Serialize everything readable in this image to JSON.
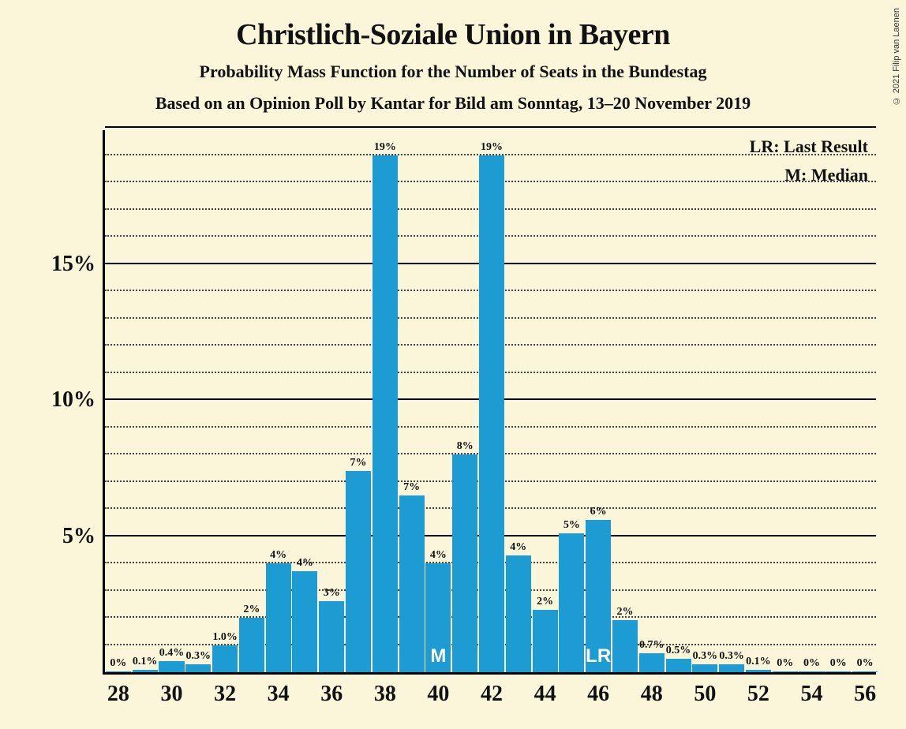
{
  "copyright": "© 2021 Filip van Laenen",
  "title": "Christlich-Soziale Union in Bayern",
  "subtitle1": "Probability Mass Function for the Number of Seats in the Bundestag",
  "subtitle2": "Based on an Opinion Poll by Kantar for Bild am Sonntag, 13–20 November 2019",
  "legend_lr": "LR: Last Result",
  "legend_m": "M: Median",
  "chart": {
    "type": "bar",
    "bar_color": "#1d9cd3",
    "background_color": "#fbf6da",
    "axis_color": "#000000",
    "grid_major_color": "#000000",
    "grid_minor_color": "#444444",
    "title_fontsize": 38,
    "subtitle_fontsize": 22,
    "axis_label_fontsize": 28,
    "bar_label_fontsize": 14,
    "ylim_max": 20,
    "y_major_step": 5,
    "y_minor_step": 1,
    "x_min": 28,
    "x_max": 56,
    "x_tick_step": 2,
    "bar_width_ratio": 0.95,
    "markers": {
      "M": {
        "x": 40,
        "label": "M"
      },
      "LR": {
        "x": 46,
        "label": "LR"
      }
    },
    "bars": [
      {
        "x": 28,
        "value": 0,
        "label": "0%"
      },
      {
        "x": 29,
        "value": 0.1,
        "label": "0.1%"
      },
      {
        "x": 30,
        "value": 0.4,
        "label": "0.4%"
      },
      {
        "x": 31,
        "value": 0.3,
        "label": "0.3%"
      },
      {
        "x": 32,
        "value": 1.0,
        "label": "1.0%"
      },
      {
        "x": 33,
        "value": 2,
        "label": "2%"
      },
      {
        "x": 34,
        "value": 4,
        "label": "4%"
      },
      {
        "x": 35,
        "value": 3.7,
        "label": "4%"
      },
      {
        "x": 36,
        "value": 2.6,
        "label": "3%"
      },
      {
        "x": 37,
        "value": 7.4,
        "label": "7%"
      },
      {
        "x": 38,
        "value": 19,
        "label": "19%"
      },
      {
        "x": 39,
        "value": 6.5,
        "label": "7%"
      },
      {
        "x": 40,
        "value": 4,
        "label": "4%"
      },
      {
        "x": 41,
        "value": 8,
        "label": "8%"
      },
      {
        "x": 42,
        "value": 19,
        "label": "19%"
      },
      {
        "x": 43,
        "value": 4.3,
        "label": "4%"
      },
      {
        "x": 44,
        "value": 2.3,
        "label": "2%"
      },
      {
        "x": 45,
        "value": 5.1,
        "label": "5%"
      },
      {
        "x": 46,
        "value": 5.6,
        "label": "6%"
      },
      {
        "x": 47,
        "value": 1.9,
        "label": "2%"
      },
      {
        "x": 48,
        "value": 0.7,
        "label": "0.7%"
      },
      {
        "x": 49,
        "value": 0.5,
        "label": "0.5%"
      },
      {
        "x": 50,
        "value": 0.3,
        "label": "0.3%"
      },
      {
        "x": 51,
        "value": 0.3,
        "label": "0.3%"
      },
      {
        "x": 52,
        "value": 0.1,
        "label": "0.1%"
      },
      {
        "x": 53,
        "value": 0,
        "label": "0%"
      },
      {
        "x": 54,
        "value": 0,
        "label": "0%"
      },
      {
        "x": 55,
        "value": 0,
        "label": "0%"
      },
      {
        "x": 56,
        "value": 0,
        "label": "0%"
      }
    ]
  }
}
